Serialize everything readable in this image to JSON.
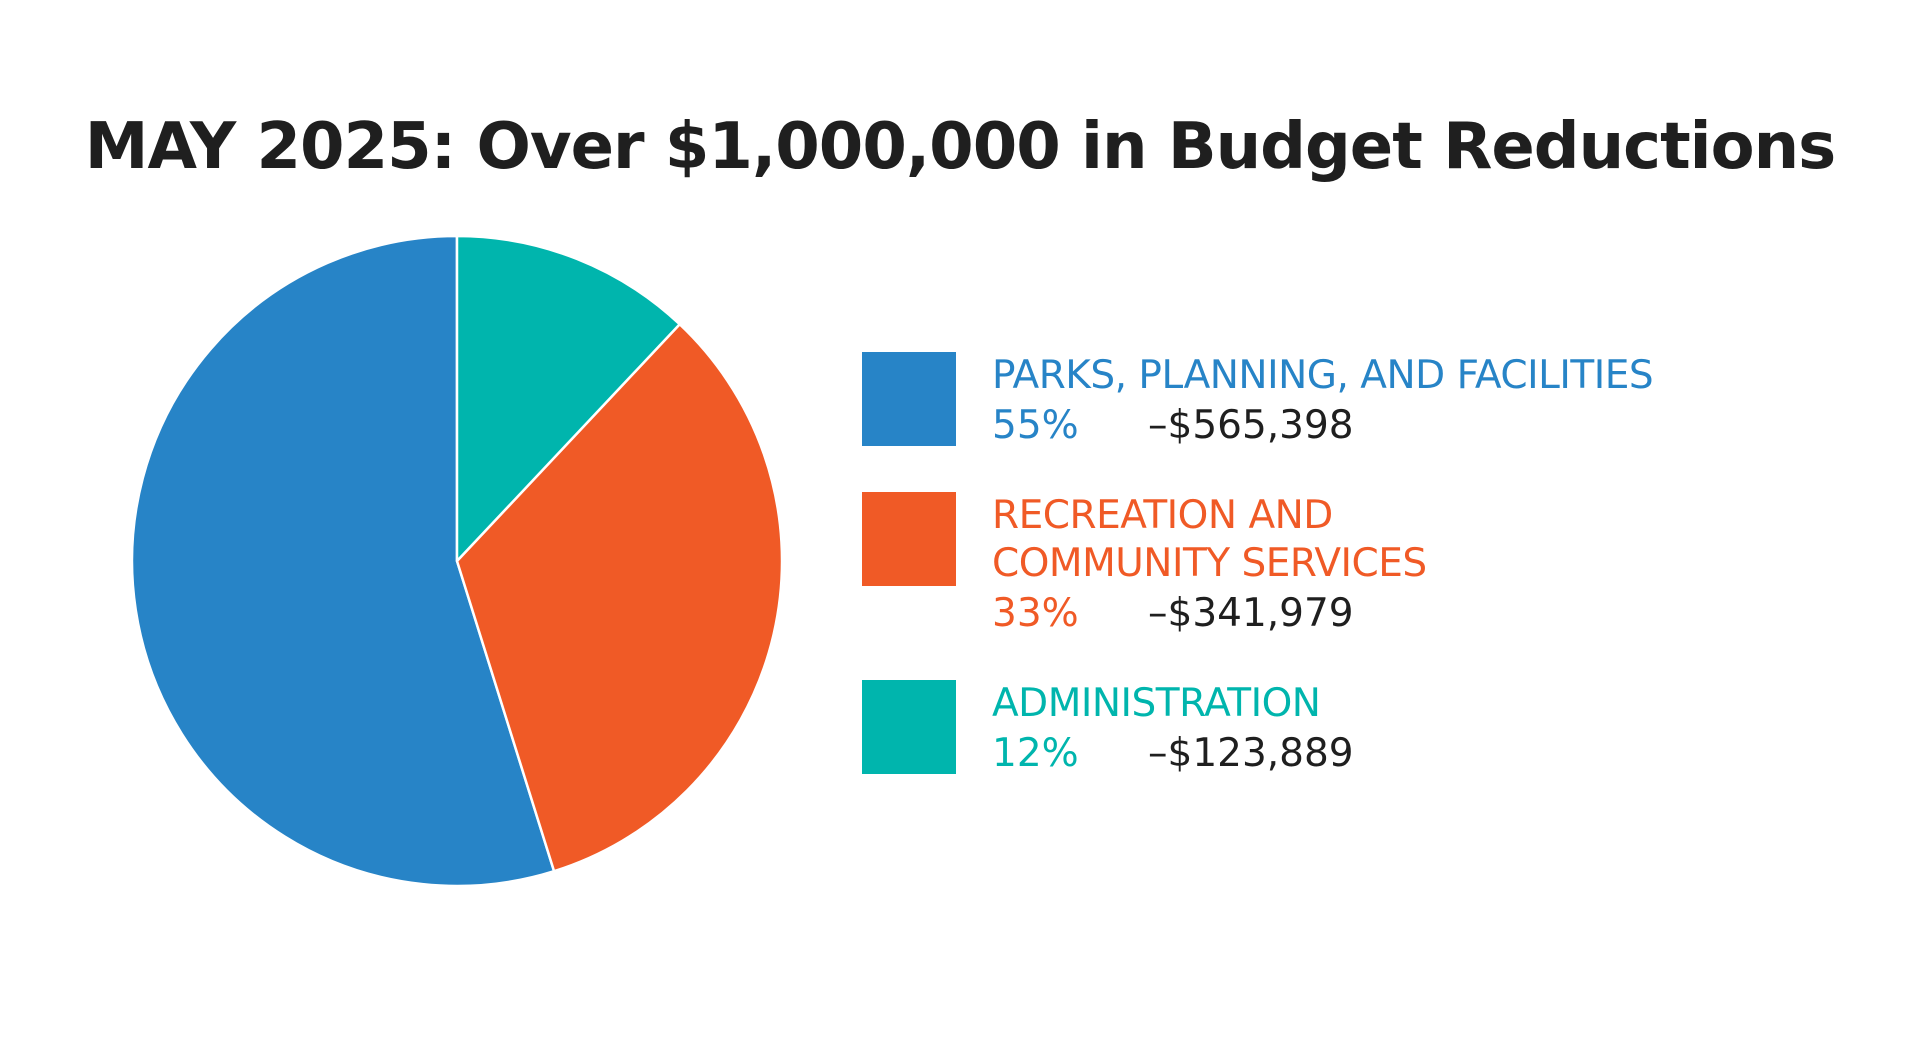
{
  "chart_data": {
    "type": "pie",
    "title": "MAY 2025: Over $1,000,000 in Budget Reductions",
    "slices": [
      {
        "label_lines": [
          "PARKS, PLANNING, AND FACILITIES"
        ],
        "percent_label": "55%",
        "amount_label": "–$565,398",
        "value": 565398,
        "color": "#2784c7"
      },
      {
        "label_lines": [
          "RECREATION AND",
          "COMMUNITY SERVICES"
        ],
        "percent_label": "33%",
        "amount_label": "–$341,979",
        "value": 341979,
        "color": "#f05a26"
      },
      {
        "label_lines": [
          "ADMINISTRATION"
        ],
        "percent_label": "12%",
        "amount_label": "–$123,889",
        "value": 123889,
        "color": "#00b5ad"
      }
    ],
    "legend_position": "right",
    "direction": "counterclockwise from top"
  }
}
